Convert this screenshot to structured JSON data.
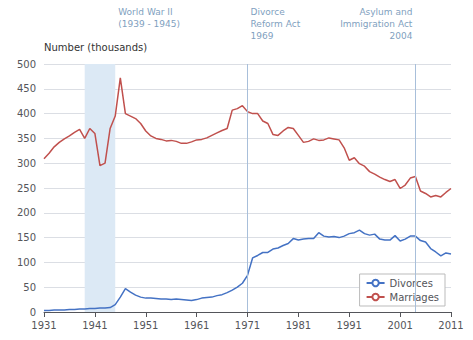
{
  "chart_data": {
    "type": "line",
    "ylabel": "Number (thousands)",
    "x": [
      1931,
      1932,
      1933,
      1934,
      1935,
      1936,
      1937,
      1938,
      1939,
      1940,
      1941,
      1942,
      1943,
      1944,
      1945,
      1946,
      1947,
      1948,
      1949,
      1950,
      1951,
      1952,
      1953,
      1954,
      1955,
      1956,
      1957,
      1958,
      1959,
      1960,
      1961,
      1962,
      1963,
      1964,
      1965,
      1966,
      1967,
      1968,
      1969,
      1970,
      1971,
      1972,
      1973,
      1974,
      1975,
      1976,
      1977,
      1978,
      1979,
      1980,
      1981,
      1982,
      1983,
      1984,
      1985,
      1986,
      1987,
      1988,
      1989,
      1990,
      1991,
      1992,
      1993,
      1994,
      1995,
      1996,
      1997,
      1998,
      1999,
      2000,
      2001,
      2002,
      2003,
      2004,
      2005,
      2006,
      2007,
      2008,
      2009,
      2010,
      2011
    ],
    "series": [
      {
        "name": "Marriages",
        "color": "#c0504d",
        "values": [
          309,
          320,
          333,
          342,
          349,
          355,
          362,
          368,
          350,
          370,
          360,
          295,
          300,
          370,
          395,
          472,
          400,
          395,
          390,
          380,
          365,
          355,
          350,
          348,
          345,
          346,
          344,
          340,
          340,
          343,
          347,
          348,
          351,
          356,
          361,
          366,
          370,
          407,
          410,
          416,
          404,
          400,
          400,
          385,
          380,
          358,
          356,
          365,
          372,
          370,
          356,
          342,
          344,
          349,
          346,
          347,
          351,
          349,
          347,
          331,
          306,
          311,
          299,
          294,
          283,
          278,
          272,
          267,
          263,
          267,
          249,
          256,
          270,
          273,
          244,
          239,
          232,
          235,
          232,
          241,
          249
        ]
      },
      {
        "name": "Divorces",
        "color": "#4472c4",
        "values": [
          3,
          3,
          4,
          4,
          4,
          5,
          5,
          6,
          6,
          7,
          7,
          8,
          8,
          9,
          15,
          30,
          47,
          40,
          34,
          30,
          28,
          28,
          27,
          26,
          26,
          25,
          26,
          25,
          24,
          23,
          25,
          28,
          29,
          30,
          33,
          35,
          39,
          44,
          50,
          58,
          74,
          109,
          114,
          120,
          120,
          127,
          129,
          134,
          138,
          148,
          145,
          147,
          148,
          148,
          160,
          153,
          151,
          152,
          150,
          153,
          158,
          160,
          165,
          158,
          155,
          157,
          147,
          145,
          145,
          154,
          143,
          147,
          153,
          153,
          144,
          141,
          128,
          121,
          113,
          119,
          117
        ]
      }
    ],
    "xlim": [
      1931,
      2011
    ],
    "xticks": [
      1931,
      1941,
      1951,
      1961,
      1971,
      1981,
      1991,
      2001,
      2011
    ],
    "ylim": [
      0,
      500
    ],
    "yticks": [
      0,
      50,
      100,
      150,
      200,
      250,
      300,
      350,
      400,
      450,
      500
    ],
    "grid": true,
    "legend": "lower right",
    "annotations": [
      {
        "label": "World War II\n(1939 - 1945)",
        "x_start": 1939,
        "x_end": 1945,
        "color": "#dce9f5"
      },
      {
        "label": "Divorce\nReform Act\n1969",
        "x": 1971,
        "color": "#a8bfda"
      },
      {
        "label": "Asylum and\nImmigration Act\n2004",
        "x": 2004,
        "color": "#a8bfda"
      }
    ]
  }
}
